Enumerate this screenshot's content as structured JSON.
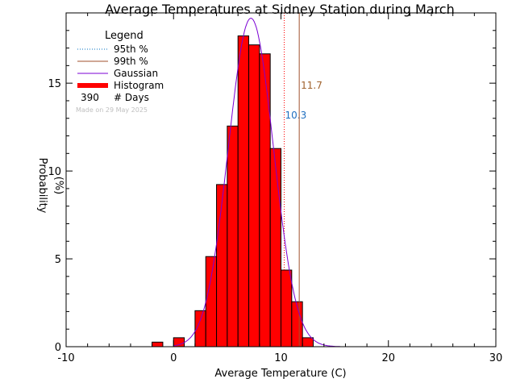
{
  "chart_data": {
    "type": "bar",
    "title": "Average Temperatures at Sidney Station during March",
    "xlabel": "Average Temperature (C)",
    "ylabel": "Probability\n(%)",
    "xlim": [
      -10,
      30
    ],
    "ylim": [
      0,
      19
    ],
    "xticks": [
      -10,
      0,
      10,
      20,
      30
    ],
    "yticks": [
      0,
      5,
      10,
      15
    ],
    "bin_width": 1,
    "bins_left": [
      -2,
      0,
      2,
      3,
      4,
      5,
      6,
      7,
      8,
      9,
      10,
      11,
      12
    ],
    "values": [
      0.26,
      0.51,
      2.05,
      5.13,
      9.23,
      12.56,
      17.69,
      17.18,
      16.67,
      11.28,
      4.36,
      2.56,
      0.51
    ],
    "gaussian": {
      "mean": 7.2,
      "sd": 2.1,
      "peak": 18.7
    },
    "percentile_lines": [
      {
        "label": "10.3",
        "value": 10.3,
        "color": "#ff0000"
      },
      {
        "label": "11.7",
        "value": 11.7,
        "color": "#a0522d"
      }
    ],
    "legend": {
      "title": "Legend",
      "items": [
        {
          "label": "95th %",
          "style": "dotted",
          "color": "#0070c0"
        },
        {
          "label": "99th %",
          "style": "solid",
          "color": "#a0522d"
        },
        {
          "label": "Gaussian",
          "style": "solid",
          "color": "#7b00d4"
        },
        {
          "label": "Histogram",
          "style": "thick",
          "color": "#ff0000"
        }
      ],
      "count_value": "390",
      "count_label": "# Days"
    },
    "annotation": "Made on 29 May 2025",
    "colors": {
      "bar_fill": "#ff0000",
      "bar_edge": "#000000",
      "gaussian": "#7b00d4",
      "label_95": "#1f6fc0",
      "label_99": "#a0622d",
      "annotation": "#c0c0c0"
    }
  }
}
